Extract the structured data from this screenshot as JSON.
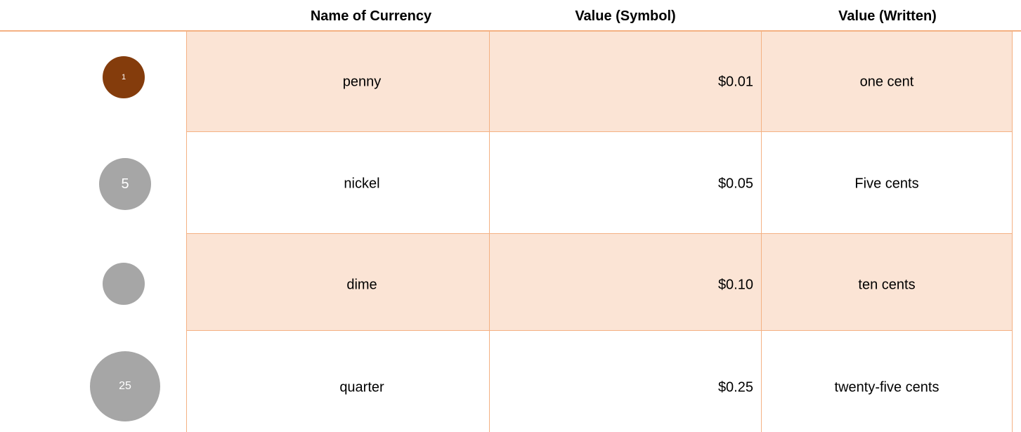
{
  "table": {
    "header": [
      "Name of Currency",
      "Value (Symbol)",
      "Value (Written)"
    ],
    "rows": [
      {
        "coin": "1",
        "name": "penny",
        "symbol": "$0.01",
        "written": "one cent"
      },
      {
        "coin": "5",
        "name": "nickel",
        "symbol": "$0.05",
        "written": "Five cents"
      },
      {
        "name": "dime",
        "symbol": "$0.10",
        "written": "ten cents"
      },
      {
        "coin": "25",
        "name": "quarter",
        "symbol": "$0.25",
        "written": "twenty-five cents"
      }
    ]
  }
}
